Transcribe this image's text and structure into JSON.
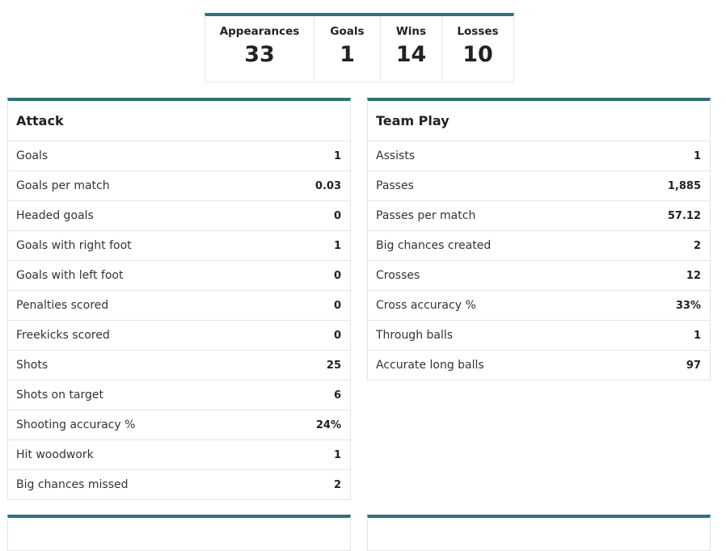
{
  "summary": [
    {
      "label": "Appearances",
      "value": "33"
    },
    {
      "label": "Goals",
      "value": "1"
    },
    {
      "label": "Wins",
      "value": "14"
    },
    {
      "label": "Losses",
      "value": "10"
    }
  ],
  "panels": [
    {
      "title": "Attack",
      "rows": [
        [
          "Goals",
          "1"
        ],
        [
          "Goals per match",
          "0.03"
        ],
        [
          "Headed goals",
          "0"
        ],
        [
          "Goals with right foot",
          "1"
        ],
        [
          "Goals with left foot",
          "0"
        ],
        [
          "Penalties scored",
          "0"
        ],
        [
          "Freekicks scored",
          "0"
        ],
        [
          "Shots",
          "25"
        ],
        [
          "Shots on target",
          "6"
        ],
        [
          "Shooting accuracy %",
          "24%"
        ],
        [
          "Hit woodwork",
          "1"
        ],
        [
          "Big chances missed",
          "2"
        ]
      ]
    },
    {
      "title": "Team Play",
      "rows": [
        [
          "Assists",
          "1"
        ],
        [
          "Passes",
          "1,885"
        ],
        [
          "Passes per match",
          "57.12"
        ],
        [
          "Big chances created",
          "2"
        ],
        [
          "Crosses",
          "12"
        ],
        [
          "Cross accuracy %",
          "33%"
        ],
        [
          "Through balls",
          "1"
        ],
        [
          "Accurate long balls",
          "97"
        ]
      ]
    }
  ]
}
